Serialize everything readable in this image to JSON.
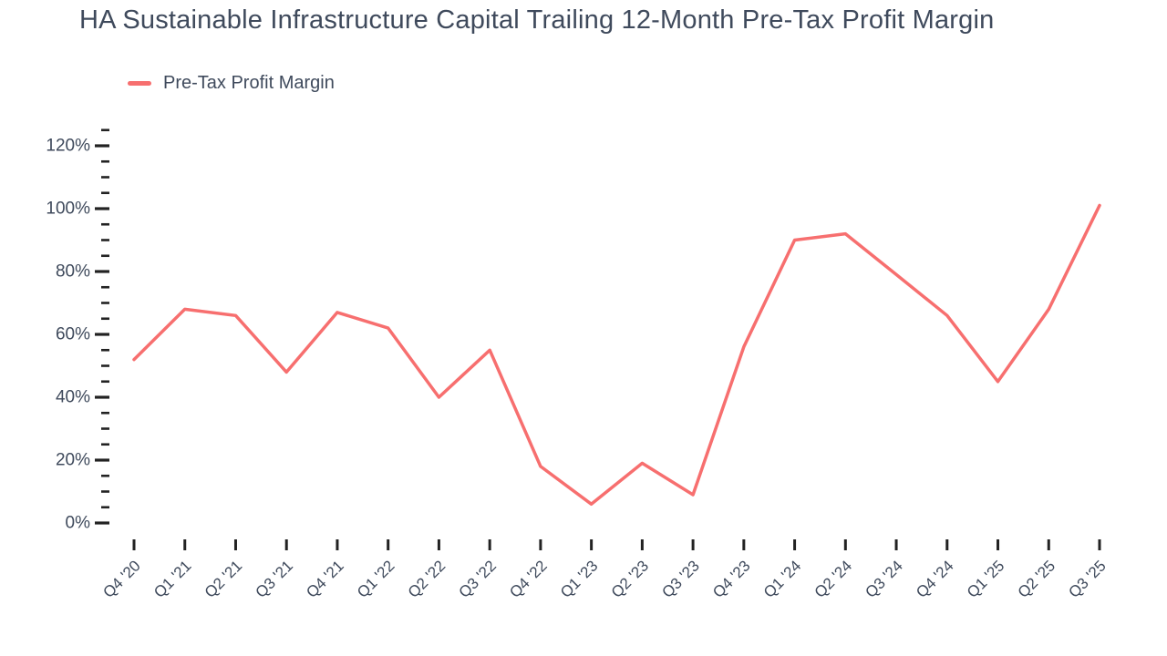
{
  "title": "HA Sustainable Infrastructure Capital Trailing 12-Month Pre-Tax Profit Margin",
  "legend": {
    "items": [
      {
        "label": "Pre-Tax Profit Margin",
        "color": "#f76f6f"
      }
    ]
  },
  "colors": {
    "accent_line": "#f76f6f",
    "text": "#3f4a5c",
    "tick": "#222222",
    "background": "#ffffff"
  },
  "chart_data": {
    "type": "line",
    "title": "HA Sustainable Infrastructure Capital Trailing 12-Month Pre-Tax Profit Margin",
    "categories": [
      "Q4 '20",
      "Q1 '21",
      "Q2 '21",
      "Q3 '21",
      "Q4 '21",
      "Q1 '22",
      "Q2 '22",
      "Q3 '22",
      "Q4 '22",
      "Q1 '23",
      "Q2 '23",
      "Q3 '23",
      "Q4 '23",
      "Q1 '24",
      "Q2 '24",
      "Q3 '24",
      "Q4 '24",
      "Q1 '25",
      "Q2 '25",
      "Q3 '25"
    ],
    "series": [
      {
        "name": "Pre-Tax Profit Margin",
        "color": "#f76f6f",
        "values": [
          52,
          68,
          66,
          48,
          67,
          62,
          40,
          55,
          18,
          6,
          19,
          9,
          56,
          90,
          92,
          79,
          66,
          45,
          68,
          101
        ]
      }
    ],
    "y_axis": {
      "unit": "%",
      "min": 0,
      "max": 125,
      "major_step": 20,
      "minor_step": 5,
      "major_labels": [
        "0%",
        "20%",
        "40%",
        "60%",
        "80%",
        "100%",
        "120%"
      ]
    },
    "x_axis": {
      "label_rotation_deg": -45
    },
    "grid": false,
    "legend_position": "top-left"
  }
}
